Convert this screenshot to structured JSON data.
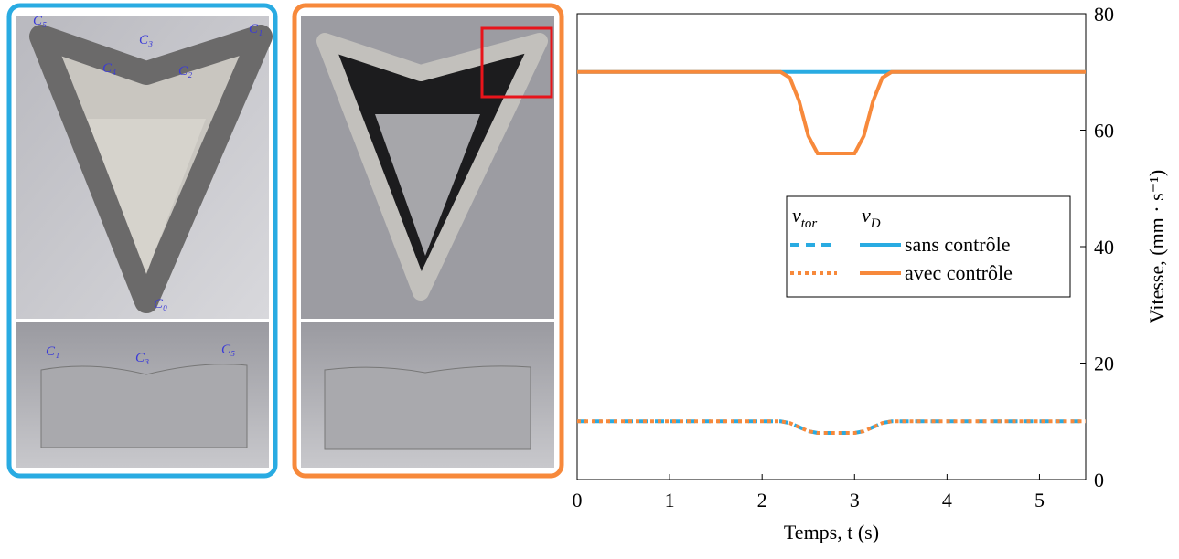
{
  "photos": [
    {
      "top_labels": [
        "C₅",
        "C₃",
        "C₁",
        "C₄",
        "C₂",
        "C₀"
      ],
      "bottom_labels": [
        "C₁",
        "C₃",
        "C₅"
      ]
    },
    {
      "top_labels": [],
      "bottom_labels": []
    }
  ],
  "chart_data": {
    "type": "line",
    "xlabel": "Temps, t (s)",
    "ylabel": "Vitesse, (mm · s⁻¹)",
    "x": [
      0,
      2.2,
      2.3,
      2.4,
      2.5,
      2.6,
      3.0,
      3.1,
      3.2,
      3.3,
      3.4,
      5.5
    ],
    "legend_columns": [
      {
        "symbol": "v",
        "subscript": "tor"
      },
      {
        "symbol": "v",
        "subscript": "D"
      }
    ],
    "series": [
      {
        "name": "sans contrôle",
        "color": "#29abe2",
        "values": [
          [
            10,
            10,
            9.7,
            9,
            8.3,
            8,
            8,
            8.3,
            9,
            9.7,
            10,
            10
          ],
          [
            70,
            70,
            70,
            70,
            70,
            70,
            70,
            70,
            70,
            70,
            70,
            70
          ]
        ]
      },
      {
        "name": "avec contrôle",
        "color": "#f7893b",
        "values": [
          [
            10,
            10,
            9.7,
            9,
            8.3,
            8,
            8,
            8.3,
            9,
            9.7,
            10,
            10
          ],
          [
            70,
            70,
            69,
            65,
            59,
            56,
            56,
            59,
            65,
            69,
            70,
            70
          ]
        ]
      }
    ],
    "xlim": [
      0,
      5.5
    ],
    "xticks": [
      0,
      1,
      2,
      3,
      4,
      5
    ],
    "ylim": [
      0,
      80
    ],
    "yticks": [
      0,
      20,
      40,
      60,
      80
    ]
  }
}
